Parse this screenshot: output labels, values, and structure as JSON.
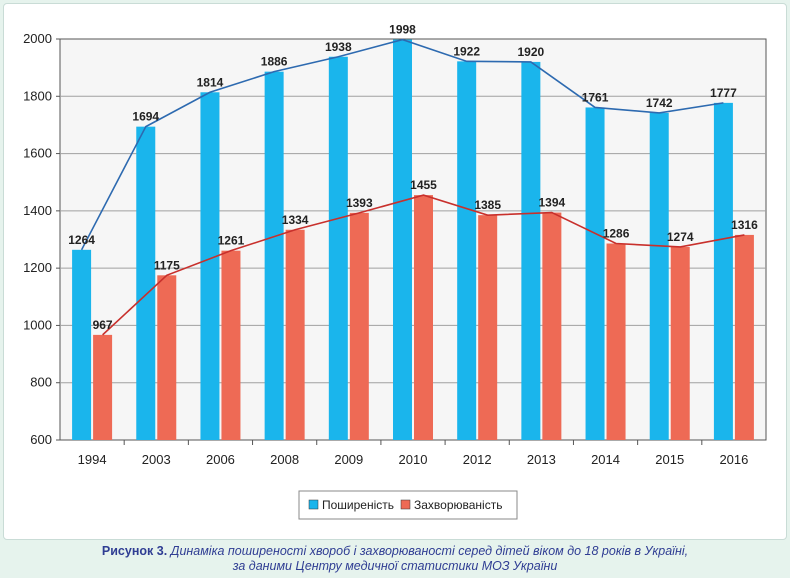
{
  "chart_data": {
    "type": "bar",
    "categories": [
      "1994",
      "2003",
      "2006",
      "2008",
      "2009",
      "2010",
      "2012",
      "2013",
      "2014",
      "2015",
      "2016"
    ],
    "series": [
      {
        "name": "Поширеність",
        "color": "#1ab5ec",
        "values": [
          1264,
          1694,
          1814,
          1886,
          1938,
          1998,
          1922,
          1920,
          1761,
          1742,
          1777
        ],
        "line_color": "#2d6ab0"
      },
      {
        "name": "Захворюваність",
        "color": "#ee6a55",
        "values": [
          967,
          1175,
          1261,
          1334,
          1393,
          1455,
          1385,
          1394,
          1286,
          1274,
          1316
        ],
        "line_color": "#c8302c"
      }
    ],
    "trend_note": "",
    "ylim": [
      600,
      2000
    ],
    "yticks": [
      "600",
      "800",
      "1000",
      "1200",
      "1400",
      "1600",
      "1800",
      "2000"
    ],
    "grid": true,
    "legend_position": "bottom-center",
    "title": "",
    "xlabel": "",
    "ylabel": ""
  },
  "caption": {
    "label": "Рисунок 3.",
    "line1": "Динаміка поширеності хвороб і захворюваності серед дітей віком до 18 років в Україні,",
    "line2": "за даними Центру медичної статистики МОЗ України"
  }
}
